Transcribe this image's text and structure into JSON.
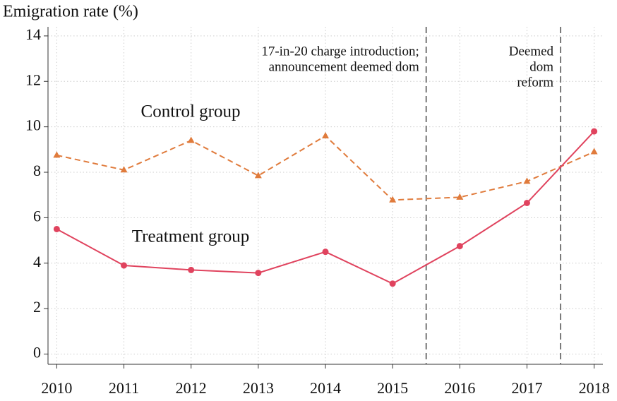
{
  "chart_data": {
    "type": "line",
    "ylabel": "Emigration rate (%)",
    "x": [
      2010,
      2011,
      2012,
      2013,
      2014,
      2015,
      2016,
      2017,
      2018
    ],
    "series": [
      {
        "name": "Control group",
        "color": "#e07b3c",
        "marker": "triangle",
        "dash": true,
        "values": [
          8.75,
          8.1,
          9.4,
          7.85,
          9.6,
          6.78,
          6.9,
          7.6,
          8.9
        ]
      },
      {
        "name": "Treatment group",
        "color": "#e0435e",
        "marker": "circle",
        "dash": false,
        "values": [
          5.5,
          3.9,
          3.7,
          3.57,
          4.5,
          3.1,
          4.75,
          6.65,
          9.8
        ]
      }
    ],
    "xlim": [
      2009.87,
      2018.13
    ],
    "ylim": [
      -0.45,
      14.4
    ],
    "xticks": [
      2010,
      2011,
      2012,
      2013,
      2014,
      2015,
      2016,
      2017,
      2018
    ],
    "yticks": [
      0,
      2,
      4,
      6,
      8,
      10,
      12,
      14
    ],
    "grid": true,
    "vlines": [
      2015.5,
      2017.5
    ],
    "annotations": [
      {
        "lines": [
          "17-in-20 charge introduction;",
          "announcement deemed dom"
        ]
      },
      {
        "lines": [
          "Deemed",
          "dom",
          "reform"
        ]
      }
    ]
  }
}
